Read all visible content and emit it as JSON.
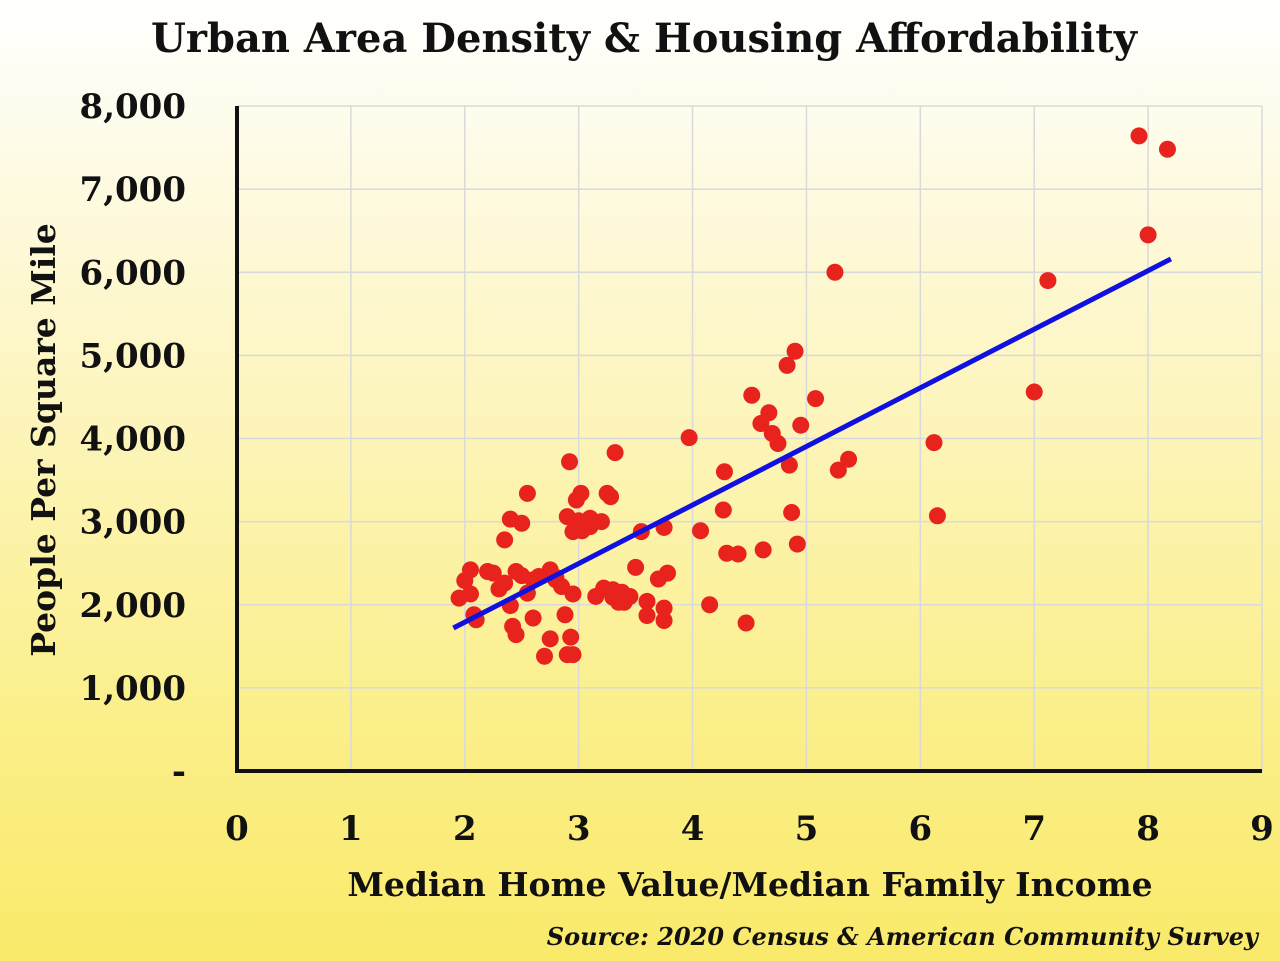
{
  "chart_data": {
    "type": "scatter",
    "title": "Urban Area Density & Housing Affordability",
    "xlabel": "Median Home Value/Median Family Income",
    "ylabel": "People Per Square Mile",
    "source": "Source: 2020 Census & American Community Survey",
    "xlim": [
      0,
      9
    ],
    "ylim": [
      0,
      8000
    ],
    "x_ticks": [
      0,
      1,
      2,
      3,
      4,
      5,
      6,
      7,
      8,
      9
    ],
    "y_ticks": [
      0,
      1000,
      2000,
      3000,
      4000,
      5000,
      6000,
      7000,
      8000
    ],
    "x_tick_labels": [
      "0",
      "1",
      "2",
      "3",
      "4",
      "5",
      "6",
      "7",
      "8",
      "9"
    ],
    "y_tick_labels": [
      "-",
      "1,000",
      "2,000",
      "3,000",
      "4,000",
      "5,000",
      "6,000",
      "7,000",
      "8,000"
    ],
    "grid": true,
    "point_color": "#e8231e",
    "trend_color": "#1010e0",
    "trendline": {
      "x": [
        1.9,
        8.2
      ],
      "y": [
        1720,
        6160
      ]
    },
    "points": [
      [
        1.95,
        2080
      ],
      [
        2.0,
        2290
      ],
      [
        2.05,
        2420
      ],
      [
        2.05,
        2130
      ],
      [
        2.08,
        1880
      ],
      [
        2.1,
        1820
      ],
      [
        2.2,
        2400
      ],
      [
        2.25,
        2380
      ],
      [
        2.3,
        2190
      ],
      [
        2.35,
        2260
      ],
      [
        2.35,
        2780
      ],
      [
        2.4,
        3030
      ],
      [
        2.4,
        1990
      ],
      [
        2.42,
        1740
      ],
      [
        2.45,
        1640
      ],
      [
        2.45,
        2400
      ],
      [
        2.5,
        2350
      ],
      [
        2.5,
        2980
      ],
      [
        2.55,
        2140
      ],
      [
        2.55,
        3340
      ],
      [
        2.6,
        2300
      ],
      [
        2.6,
        1840
      ],
      [
        2.65,
        2340
      ],
      [
        2.7,
        1380
      ],
      [
        2.75,
        1590
      ],
      [
        2.75,
        2420
      ],
      [
        2.8,
        2300
      ],
      [
        2.8,
        2330
      ],
      [
        2.85,
        2220
      ],
      [
        2.88,
        1880
      ],
      [
        2.9,
        1400
      ],
      [
        2.9,
        3060
      ],
      [
        2.92,
        3720
      ],
      [
        2.93,
        1610
      ],
      [
        2.95,
        2130
      ],
      [
        2.95,
        1400
      ],
      [
        2.95,
        2880
      ],
      [
        2.98,
        3260
      ],
      [
        3.0,
        2930
      ],
      [
        3.0,
        3010
      ],
      [
        3.02,
        3340
      ],
      [
        3.03,
        2890
      ],
      [
        3.05,
        2990
      ],
      [
        3.1,
        3040
      ],
      [
        3.1,
        2940
      ],
      [
        3.15,
        2100
      ],
      [
        3.2,
        3000
      ],
      [
        3.22,
        2200
      ],
      [
        3.25,
        3340
      ],
      [
        3.28,
        3300
      ],
      [
        3.3,
        2090
      ],
      [
        3.3,
        2180
      ],
      [
        3.32,
        3830
      ],
      [
        3.35,
        2030
      ],
      [
        3.38,
        2150
      ],
      [
        3.4,
        2030
      ],
      [
        3.45,
        2100
      ],
      [
        3.5,
        2450
      ],
      [
        3.55,
        2880
      ],
      [
        3.6,
        1870
      ],
      [
        3.6,
        2040
      ],
      [
        3.7,
        2310
      ],
      [
        3.75,
        2930
      ],
      [
        3.75,
        1960
      ],
      [
        3.75,
        1810
      ],
      [
        3.78,
        2380
      ],
      [
        3.97,
        4010
      ],
      [
        4.07,
        2890
      ],
      [
        4.15,
        2000
      ],
      [
        4.27,
        3140
      ],
      [
        4.28,
        3600
      ],
      [
        4.3,
        2620
      ],
      [
        4.4,
        2610
      ],
      [
        4.47,
        1780
      ],
      [
        4.52,
        4520
      ],
      [
        4.6,
        4180
      ],
      [
        4.62,
        2660
      ],
      [
        4.67,
        4310
      ],
      [
        4.7,
        4060
      ],
      [
        4.75,
        3940
      ],
      [
        4.83,
        4880
      ],
      [
        4.85,
        3680
      ],
      [
        4.87,
        3110
      ],
      [
        4.9,
        5050
      ],
      [
        4.92,
        2730
      ],
      [
        4.95,
        4160
      ],
      [
        5.08,
        4480
      ],
      [
        5.25,
        6000
      ],
      [
        5.28,
        3620
      ],
      [
        5.37,
        3750
      ],
      [
        6.12,
        3950
      ],
      [
        6.15,
        3070
      ],
      [
        7.0,
        4560
      ],
      [
        7.12,
        5900
      ],
      [
        7.92,
        7640
      ],
      [
        8.0,
        6450
      ],
      [
        8.17,
        7480
      ]
    ]
  }
}
